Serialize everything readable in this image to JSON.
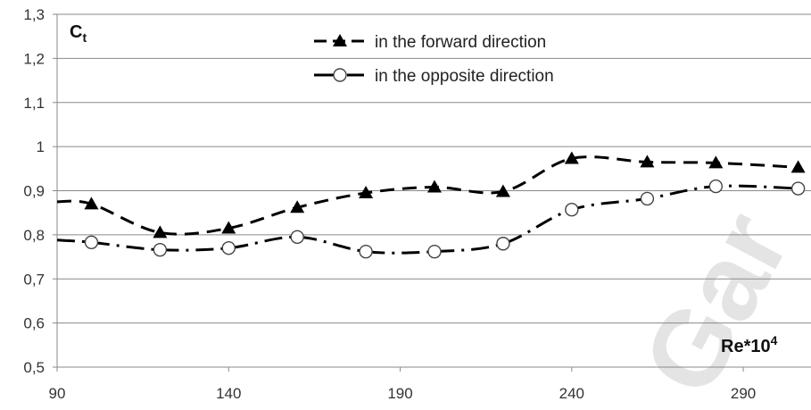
{
  "chart_data": {
    "type": "line",
    "title": "",
    "ylabel": "Ct",
    "ylabel_parts": {
      "main": "C",
      "sub": "t"
    },
    "xlabel": "Re*10^4",
    "xlabel_parts": {
      "main": "Re*10",
      "sup": "4"
    },
    "xlim": [
      90,
      310
    ],
    "ylim": [
      0.5,
      1.3
    ],
    "xticks": [
      90,
      140,
      190,
      240,
      290
    ],
    "xtick_labels": [
      "90",
      "140",
      "190",
      "240",
      "290"
    ],
    "yticks": [
      0.5,
      0.6,
      0.7,
      0.8,
      0.9,
      1.0,
      1.1,
      1.2,
      1.3
    ],
    "ytick_labels": [
      "0,5",
      "0,6",
      "0,7",
      "0,8",
      "0,9",
      "1",
      "1,1",
      "1,2",
      "1,3"
    ],
    "grid": true,
    "legend_position": "top-center",
    "series": [
      {
        "name": "in the forward direction",
        "marker": "filled-triangle",
        "line_style": "dashed",
        "color": "#000000",
        "x": [
          100,
          120,
          140,
          160,
          180,
          200,
          220,
          240,
          262,
          282,
          306
        ],
        "y": [
          0.87,
          0.805,
          0.815,
          0.862,
          0.895,
          0.908,
          0.898,
          0.973,
          0.965,
          0.963,
          0.953
        ],
        "curve_start_x": 90,
        "curve_start_y": 0.875
      },
      {
        "name": "in the opposite direction",
        "marker": "open-circle",
        "line_style": "dash-dot",
        "color": "#000000",
        "x": [
          100,
          120,
          140,
          160,
          180,
          200,
          220,
          240,
          262,
          282,
          306
        ],
        "y": [
          0.783,
          0.766,
          0.77,
          0.795,
          0.762,
          0.762,
          0.78,
          0.857,
          0.882,
          0.91,
          0.905
        ],
        "curve_start_x": 90,
        "curve_start_y": 0.788
      }
    ]
  },
  "watermark": {
    "text": "Gar",
    "color": "#e4e4e4"
  }
}
